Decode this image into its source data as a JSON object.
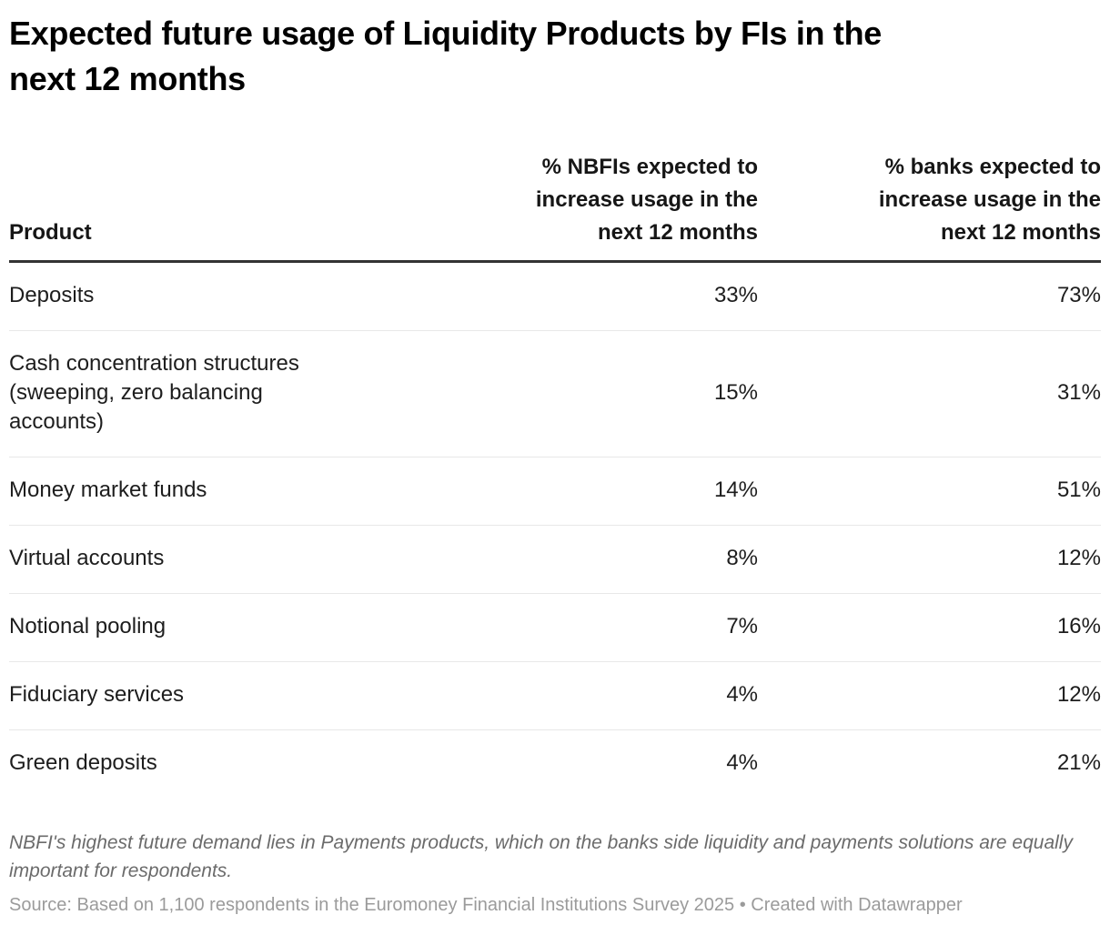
{
  "colors": {
    "background": "#ffffff",
    "title_text": "#000000",
    "body_text": "#1d1d1d",
    "header_rule": "#333333",
    "row_divider": "#e8e8e8",
    "notes_text": "#6b6b6b",
    "source_text": "#9b9b9b"
  },
  "chart_data": {
    "type": "table",
    "title": "Expected future usage of Liquidity Products by FIs in the next 12 months",
    "title_display": "Expected future usage of Liquidity Products by FIs in the\nnext 12 months",
    "columns": [
      "Product",
      "% NBFIs expected to increase usage in the next 12 months",
      "% banks expected to increase usage in the next 12 months"
    ],
    "header_display": [
      "Product",
      "% NBFIs expected to\nincrease usage in the\nnext 12 months",
      "% banks expected to\nincrease usage in the\nnext 12 months"
    ],
    "categories": [
      "Deposits",
      "Cash concentration structures (sweeping, zero balancing accounts)",
      "Money market funds",
      "Virtual accounts",
      "Notional pooling",
      "Fiduciary services",
      "Green deposits"
    ],
    "series": [
      {
        "name": "% NBFIs expected to increase usage in the next 12 months",
        "values": [
          33,
          15,
          14,
          8,
          7,
          4,
          4
        ]
      },
      {
        "name": "% banks expected to increase usage in the next 12 months",
        "values": [
          73,
          31,
          51,
          12,
          16,
          12,
          21
        ]
      }
    ],
    "rows": [
      {
        "product": "Deposits",
        "nbfi": "33%",
        "banks": "73%"
      },
      {
        "product": "Cash concentration structures\n(sweeping, zero balancing\naccounts)",
        "nbfi": "15%",
        "banks": "31%"
      },
      {
        "product": "Money market funds",
        "nbfi": "14%",
        "banks": "51%"
      },
      {
        "product": "Virtual accounts",
        "nbfi": "8%",
        "banks": "12%"
      },
      {
        "product": "Notional pooling",
        "nbfi": "7%",
        "banks": "16%"
      },
      {
        "product": "Fiduciary services",
        "nbfi": "4%",
        "banks": "12%"
      },
      {
        "product": "Green deposits",
        "nbfi": "4%",
        "banks": "21%"
      }
    ],
    "notes": "NBFI's highest future demand lies in Payments products, which on the banks side liquidity and payments solutions are equally important for respondents.",
    "source": "Source: Based on 1,100 respondents in the Euromoney Financial Institutions Survey 2025 • Created with Datawrapper",
    "layout_hints": {
      "legend": "none",
      "grid": "horizontal row dividers only",
      "value_alignment": "right",
      "header_alignment": "product left, value columns right"
    }
  }
}
